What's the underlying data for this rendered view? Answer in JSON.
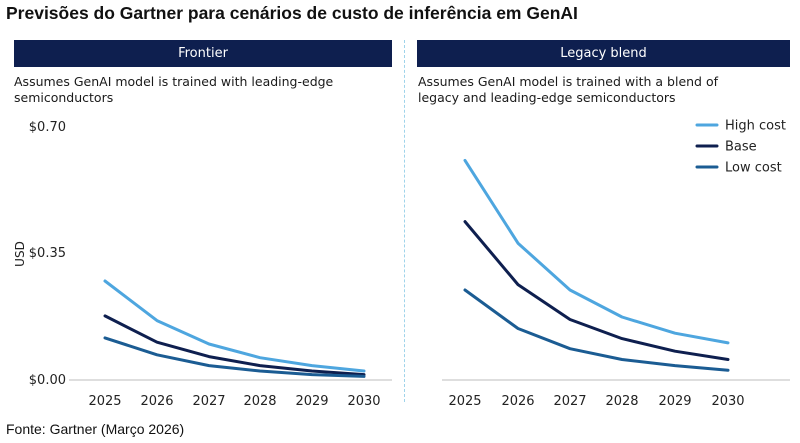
{
  "title": "Previsões do Gartner para cenários de custo de inferência em GenAI",
  "source": "Fonte: Gartner (Março 2026)",
  "y_axis": {
    "label": "USD",
    "ticks": [
      "$0.70",
      "$0.35",
      "$0.00"
    ]
  },
  "legend": [
    "High cost",
    "Base",
    "Low cost"
  ],
  "colors": {
    "high": "#4ea6df",
    "base": "#0e1f4f",
    "low": "#1b5c93",
    "header": "#0e1f4f"
  },
  "panels": [
    {
      "header": "Frontier",
      "subtitle": "Assumes GenAI model is trained with leading-edge semiconductors"
    },
    {
      "header": "Legacy blend",
      "subtitle": "Assumes GenAI model is trained with a blend of legacy and leading-edge semiconductors"
    }
  ],
  "chart_data": [
    {
      "type": "line",
      "title": "Frontier",
      "categories": [
        "2025",
        "2026",
        "2027",
        "2028",
        "2029",
        "2030"
      ],
      "ylabel": "USD",
      "ylim": [
        0,
        0.7
      ],
      "series": [
        {
          "name": "High cost",
          "values": [
            0.275,
            0.165,
            0.1,
            0.062,
            0.04,
            0.025
          ]
        },
        {
          "name": "Base",
          "values": [
            0.178,
            0.105,
            0.065,
            0.04,
            0.025,
            0.015
          ]
        },
        {
          "name": "Low cost",
          "values": [
            0.117,
            0.07,
            0.04,
            0.025,
            0.015,
            0.01
          ]
        }
      ]
    },
    {
      "type": "line",
      "title": "Legacy blend",
      "categories": [
        "2025",
        "2026",
        "2027",
        "2028",
        "2029",
        "2030"
      ],
      "ylim": [
        0,
        0.7
      ],
      "legend_position": "top-right",
      "series": [
        {
          "name": "High cost",
          "values": [
            0.61,
            0.38,
            0.25,
            0.175,
            0.13,
            0.103
          ]
        },
        {
          "name": "Base",
          "values": [
            0.44,
            0.265,
            0.168,
            0.115,
            0.08,
            0.057
          ]
        },
        {
          "name": "Low cost",
          "values": [
            0.25,
            0.143,
            0.087,
            0.057,
            0.04,
            0.027
          ]
        }
      ]
    }
  ]
}
